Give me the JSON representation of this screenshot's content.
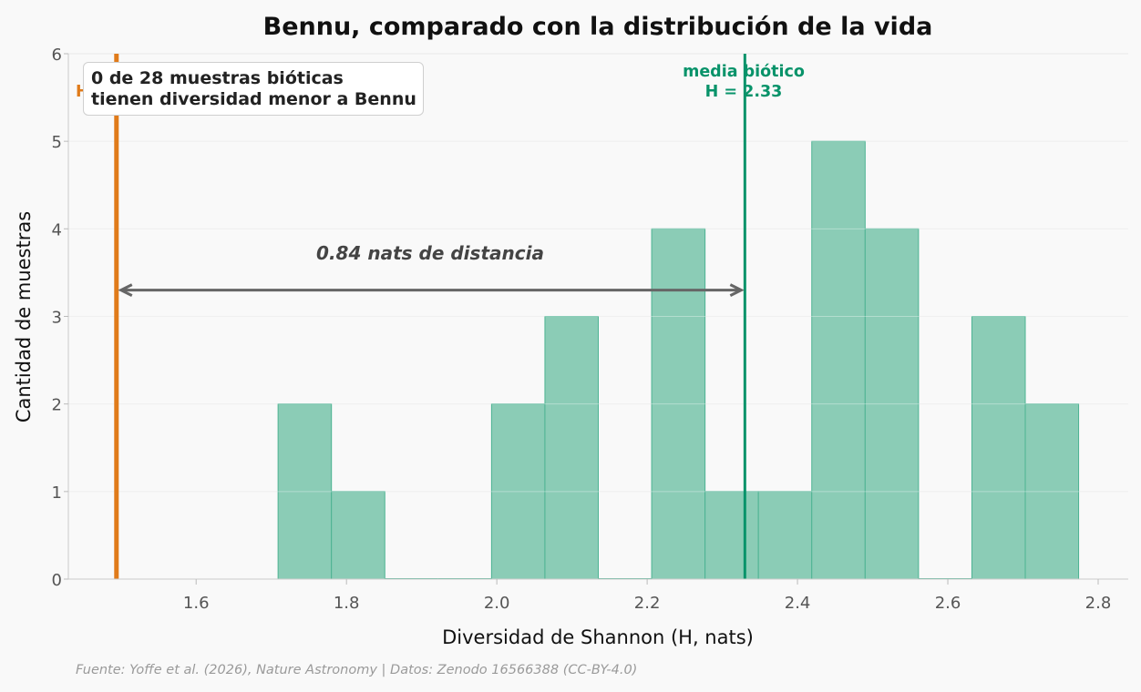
{
  "chart_data": {
    "type": "bar",
    "title": "Bennu, comparado con la distribución de la vida",
    "xlabel": "Diversidad de Shannon (H, nats)",
    "ylabel": "Cantidad de muestras",
    "xlim": [
      1.43,
      2.84
    ],
    "ylim": [
      0,
      6
    ],
    "xticks": [
      "1.6",
      "1.8",
      "2.0",
      "2.2",
      "2.4",
      "2.6",
      "2.8"
    ],
    "yticks": [
      "0",
      "1",
      "2",
      "3",
      "4",
      "5",
      "6"
    ],
    "grid": "horizontal",
    "bin_width": 0.071,
    "bins": [
      {
        "left": 1.709,
        "count": 2
      },
      {
        "left": 1.78,
        "count": 1
      },
      {
        "left": 1.851,
        "count": 0
      },
      {
        "left": 1.922,
        "count": 0
      },
      {
        "left": 1.993,
        "count": 2
      },
      {
        "left": 2.064,
        "count": 3
      },
      {
        "left": 2.135,
        "count": 0
      },
      {
        "left": 2.206,
        "count": 4
      },
      {
        "left": 2.277,
        "count": 1
      },
      {
        "left": 2.348,
        "count": 1
      },
      {
        "left": 2.419,
        "count": 5
      },
      {
        "left": 2.49,
        "count": 4
      },
      {
        "left": 2.561,
        "count": 0
      },
      {
        "left": 2.632,
        "count": 3
      },
      {
        "left": 2.703,
        "count": 2
      }
    ],
    "bennu_line": {
      "x": 1.494,
      "color": "#e07b1a",
      "label_fragment": "H"
    },
    "mean_line": {
      "x": 2.33,
      "color": "#08936a",
      "label_line1": "media biótico",
      "label_line2": "H = 2.33"
    },
    "distance_arrow": {
      "from": 1.494,
      "to": 2.33,
      "y": 3.3,
      "label": "0.84 nats de distancia",
      "color": "#666666"
    },
    "annotation_box": {
      "line1": "0 de 28 muestras bióticas",
      "line2": "tienen diversidad menor a Bennu"
    },
    "bar_color": "#8bccb6",
    "bar_edge_color": "#4db393",
    "source": "Fuente: Yoffe et al. (2026), Nature Astronomy | Datos: Zenodo 16566388 (CC-BY-4.0)"
  }
}
